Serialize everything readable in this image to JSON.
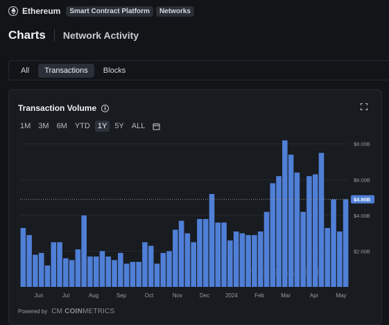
{
  "asset": {
    "name": "Ethereum",
    "tags": [
      "Smart Contract Platform",
      "Networks"
    ]
  },
  "page": {
    "title": "Charts",
    "subtitle": "Network Activity"
  },
  "tabs": [
    {
      "label": "All",
      "active": false
    },
    {
      "label": "Transactions",
      "active": true
    },
    {
      "label": "Blocks",
      "active": false
    }
  ],
  "card": {
    "title": "Transaction Volume",
    "info_icon": "info-icon",
    "expand_icon": "expand-icon",
    "calendar_icon": "calendar-icon"
  },
  "ranges": [
    {
      "label": "1M",
      "active": false
    },
    {
      "label": "3M",
      "active": false
    },
    {
      "label": "6M",
      "active": false
    },
    {
      "label": "YTD",
      "active": false
    },
    {
      "label": "1Y",
      "active": true
    },
    {
      "label": "5Y",
      "active": false
    },
    {
      "label": "ALL",
      "active": false
    }
  ],
  "watermark": "MESSARI",
  "powered": {
    "prefix": "Powered by",
    "logo_cm": "CM",
    "logo_coin": "COIN",
    "logo_metrics": "METRICS"
  },
  "colors": {
    "bar": "#4f7fd6",
    "grid": "#262b33",
    "current_badge": "#4f7fd6",
    "background": "#181b20"
  },
  "chart_data": {
    "type": "bar",
    "title": "Transaction Volume",
    "ylim": [
      0,
      8.3
    ],
    "y_unit": "B",
    "y_ticks": [
      2,
      4,
      6,
      8
    ],
    "y_tick_labels": [
      "$2.00B",
      "$4.00B",
      "$6.00B",
      "$8.00B"
    ],
    "x_tick_labels": [
      "Jun",
      "Jul",
      "Aug",
      "Sep",
      "Oct",
      "Nov",
      "Dec",
      "2024",
      "Feb",
      "Mar",
      "Apr",
      "May"
    ],
    "current_value": 4.9,
    "current_label": "$4.90B",
    "grid": true,
    "values": [
      3.3,
      2.9,
      1.8,
      1.9,
      1.2,
      2.5,
      2.5,
      1.6,
      1.5,
      2.1,
      4.0,
      1.7,
      1.7,
      2.0,
      1.7,
      1.5,
      1.9,
      1.3,
      1.4,
      1.4,
      2.5,
      2.3,
      1.3,
      1.9,
      2.0,
      3.2,
      3.7,
      3.0,
      2.5,
      3.8,
      3.8,
      5.2,
      3.6,
      3.6,
      2.6,
      3.1,
      3.0,
      2.9,
      2.9,
      3.1,
      4.2,
      5.8,
      6.2,
      8.2,
      7.4,
      6.4,
      4.2,
      6.2,
      6.3,
      7.5,
      3.3,
      4.9,
      3.1,
      4.9
    ]
  }
}
